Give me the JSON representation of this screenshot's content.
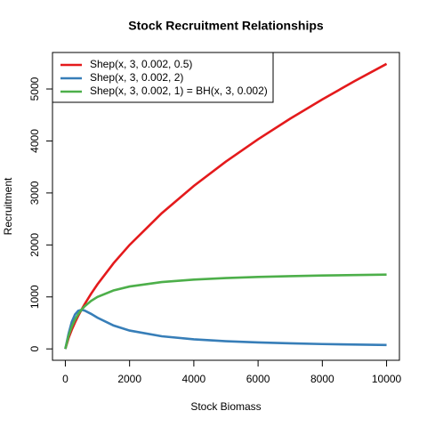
{
  "chart_data": {
    "type": "line",
    "title": "Stock Recruitment Relationships",
    "x_label": "Stock Biomass",
    "y_label": "Recruitment",
    "x": [
      0,
      100,
      200,
      300,
      400,
      500,
      600,
      800,
      1000,
      1500,
      2000,
      3000,
      4000,
      5000,
      6000,
      7000,
      8000,
      9000,
      10000
    ],
    "series": [
      {
        "name": "Shep(x, 3, 0.002, 0.5)",
        "color": "#e41a1c",
        "values": [
          0,
          207.3,
          367.6,
          507.1,
          633.5,
          750,
          859.1,
          1059.6,
          1242.6,
          1647.1,
          2000,
          2609.3,
          3134.7,
          3603.8,
          4032.2,
          4428.6,
          4800,
          5149.7,
          5482.5
        ]
      },
      {
        "name": "Shep(x, 3, 0.002, 2)",
        "color": "#377eb8",
        "values": [
          0,
          288.5,
          517.2,
          661.8,
          731.7,
          750,
          737.7,
          674.2,
          600,
          450,
          352.9,
          243.2,
          184.6,
          148.5,
          124.1,
          106.6,
          93.4,
          83.1,
          74.8
        ]
      },
      {
        "name": "Shep(x, 3, 0.002, 1) = BH(x, 3, 0.002)",
        "color": "#4daf4a",
        "values": [
          0,
          250,
          428.6,
          562.5,
          666.7,
          750,
          818.2,
          923.1,
          1000,
          1125,
          1200,
          1285.7,
          1333.3,
          1363.6,
          1384.6,
          1400,
          1411.8,
          1421.1,
          1428.6
        ]
      }
    ],
    "xlim": [
      -400,
      10400
    ],
    "ylim": [
      -219,
      5702
    ],
    "xticks": [
      0,
      2000,
      4000,
      6000,
      8000,
      10000
    ],
    "yticks": [
      0,
      1000,
      2000,
      3000,
      4000,
      5000
    ],
    "legend": "top-left"
  }
}
